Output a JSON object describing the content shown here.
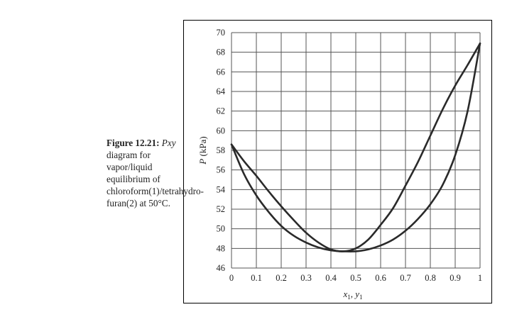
{
  "caption": {
    "figure_label": "Figure 12.21:",
    "symbol": "Pxy",
    "text_line1": " diagram for vapor/liquid equilibrium of chloroform(1)/tetrahydro-furan(2) at 50°C."
  },
  "chart_data": {
    "type": "line",
    "title": "",
    "xlabel_main": "x",
    "xlabel_sub1": "1",
    "xlabel_sep": ", y",
    "xlabel_sub2": "1",
    "ylabel_symbol": "P",
    "ylabel_unit": " (kPa)",
    "xlim": [
      0,
      1
    ],
    "ylim": [
      46,
      70
    ],
    "x_ticks": [
      "0",
      "0.1",
      "0.2",
      "0.3",
      "0.4",
      "0.5",
      "0.6",
      "0.7",
      "0.8",
      "0.9",
      "1"
    ],
    "y_ticks": [
      "46",
      "48",
      "50",
      "52",
      "54",
      "56",
      "58",
      "60",
      "62",
      "64",
      "66",
      "68",
      "70"
    ],
    "grid": true,
    "series": [
      {
        "x": [
          0,
          0.05,
          0.1,
          0.15,
          0.2,
          0.25,
          0.3,
          0.35,
          0.4,
          0.45,
          0.5,
          0.55,
          0.6,
          0.65,
          0.7,
          0.75,
          0.8,
          0.85,
          0.9,
          0.95,
          1
        ],
        "y": [
          58.6,
          56.9,
          55.4,
          53.8,
          52.3,
          50.9,
          49.6,
          48.6,
          47.9,
          47.7,
          48.0,
          48.9,
          50.4,
          52.1,
          54.4,
          56.8,
          59.5,
          62.2,
          64.6,
          66.7,
          68.9
        ]
      },
      {
        "x": [
          0,
          0.05,
          0.1,
          0.15,
          0.2,
          0.25,
          0.3,
          0.35,
          0.4,
          0.45,
          0.5,
          0.55,
          0.6,
          0.65,
          0.7,
          0.75,
          0.8,
          0.85,
          0.9,
          0.95,
          1
        ],
        "y": [
          58.6,
          55.6,
          53.4,
          51.7,
          50.3,
          49.3,
          48.6,
          48.1,
          47.8,
          47.7,
          47.7,
          47.9,
          48.3,
          48.9,
          49.8,
          51.0,
          52.5,
          54.5,
          57.5,
          62.0,
          68.9
        ]
      }
    ]
  }
}
